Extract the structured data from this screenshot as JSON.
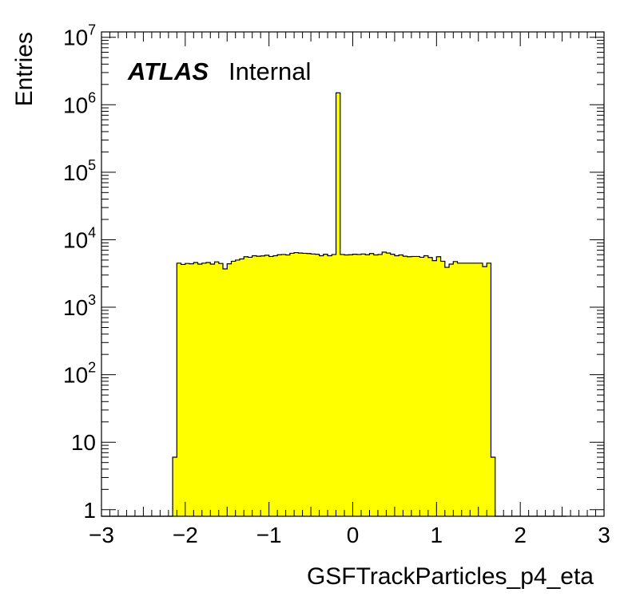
{
  "chart_data": {
    "type": "bar",
    "subtype": "histogram-step-filled",
    "x_label": "GSFTrackParticles_p4_eta",
    "y_label": "Entries",
    "xlim": [
      -3,
      3
    ],
    "ylim": [
      0.8,
      12000000
    ],
    "y_scale": "log",
    "x_ticks": [
      -3,
      -2,
      -1,
      0,
      1,
      2,
      3
    ],
    "x_tick_labels": [
      "−3",
      "−2",
      "−1",
      "0",
      "1",
      "2",
      "3"
    ],
    "y_ticks": [
      {
        "value": 1,
        "base": "1",
        "exp": ""
      },
      {
        "value": 10,
        "base": "10",
        "exp": ""
      },
      {
        "value": 100,
        "base": "10",
        "exp": "2"
      },
      {
        "value": 1000,
        "base": "10",
        "exp": "3"
      },
      {
        "value": 10000,
        "base": "10",
        "exp": "4"
      },
      {
        "value": 100000,
        "base": "10",
        "exp": "5"
      },
      {
        "value": 1000000,
        "base": "10",
        "exp": "6"
      },
      {
        "value": 10000000,
        "base": "10",
        "exp": "7"
      }
    ],
    "bin_edges_start": -3,
    "bin_width": 0.05,
    "fill_color": "#ffff00",
    "line_color": "#000000",
    "values": [
      0,
      0,
      0,
      0,
      0,
      0,
      0,
      0,
      0,
      0,
      0,
      0,
      0,
      0,
      0,
      0,
      0,
      6,
      4500,
      4300,
      4450,
      4400,
      4600,
      4350,
      4500,
      4600,
      4350,
      4700,
      4450,
      3700,
      4400,
      4800,
      5000,
      5200,
      5600,
      5500,
      5800,
      5700,
      5750,
      5900,
      5650,
      5800,
      6000,
      6050,
      5950,
      6300,
      6450,
      6350,
      6300,
      6250,
      6150,
      6100,
      5800,
      6100,
      5800,
      6050,
      1500000,
      6050,
      5950,
      6000,
      6100,
      6050,
      6150,
      6000,
      6250,
      5950,
      6050,
      6550,
      6350,
      6100,
      5800,
      5950,
      5700,
      5600,
      5650,
      5650,
      5500,
      5800,
      5450,
      4900,
      5600,
      4800,
      3900,
      4350,
      4750,
      4500,
      4500,
      4500,
      4500,
      4500,
      4500,
      4000,
      4500,
      6,
      0,
      0,
      0,
      0,
      0,
      0,
      0,
      0,
      0,
      0,
      0,
      0,
      0,
      0,
      0,
      0,
      0
    ]
  },
  "labels": {
    "atlas": "ATLAS",
    "internal": "Internal"
  },
  "style": {
    "frame_color": "#000000",
    "background": "#ffffff"
  }
}
